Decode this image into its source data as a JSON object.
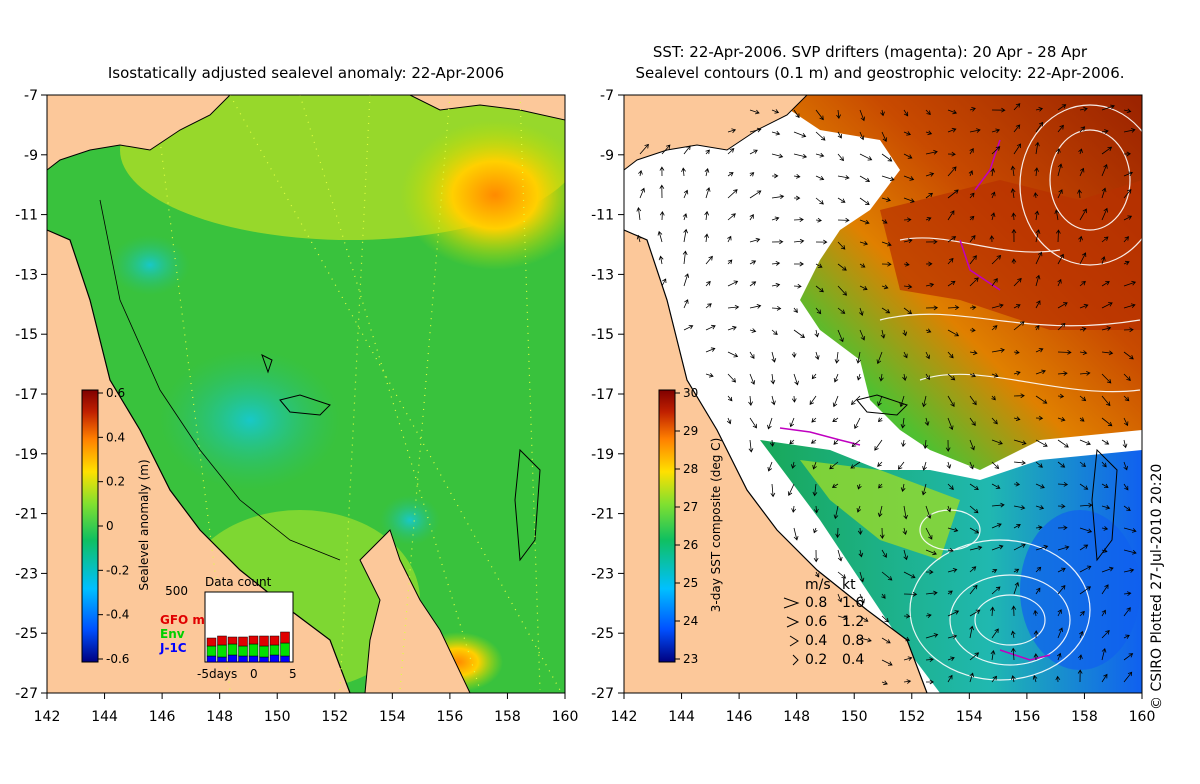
{
  "left_panel": {
    "title": "Isostatically adjusted sealevel anomaly: 22-Apr-2006",
    "colorbar_label": "Sealevel anomaly (m)",
    "colorbar_ticks": [
      "0.6",
      "0.4",
      "0.2",
      "0",
      "-0.2",
      "-0.4",
      "-0.6"
    ],
    "data_count": {
      "title": "Data count",
      "y_max_label": "500",
      "series": [
        {
          "name": "GFO mm",
          "color": "#e00000"
        },
        {
          "name": "Env",
          "color": "#00e000"
        },
        {
          "name": "J-1C",
          "color": "#0000ff"
        }
      ],
      "x_labels": [
        "-5days",
        "0",
        "5"
      ]
    }
  },
  "right_panel": {
    "title_line1": "SST: 22-Apr-2006. SVP drifters (magenta): 20 Apr - 28 Apr",
    "title_line2": "Sealevel contours (0.1 m) and geostrophic velocity: 22-Apr-2006.",
    "colorbar_label": "3-day SST composite (deg C)",
    "colorbar_ticks": [
      "30",
      "29",
      "28",
      "27",
      "26",
      "25",
      "24",
      "23"
    ],
    "speed_legend": {
      "header_ms": "m/s",
      "header_kt": "kt",
      "rows": [
        {
          "ms": "0.8",
          "kt": "1.6"
        },
        {
          "ms": "0.6",
          "kt": "1.2"
        },
        {
          "ms": "0.4",
          "kt": "0.8"
        },
        {
          "ms": "0.2",
          "kt": "0.4"
        }
      ]
    }
  },
  "axes": {
    "y_ticks": [
      "-7",
      "-9",
      "-11",
      "-13",
      "-15",
      "-17",
      "-19",
      "-21",
      "-23",
      "-25",
      "-27"
    ],
    "x_ticks": [
      "142",
      "144",
      "146",
      "148",
      "150",
      "152",
      "154",
      "156",
      "158",
      "160"
    ]
  },
  "credit": "© CSIRO Plotted 27-Jul-2010 20:20",
  "colors": {
    "land": "#fcc89a",
    "ocean_left": "#39c23d",
    "ssh_gradient": [
      "#000080",
      "#0050ff",
      "#00c0ff",
      "#10c060",
      "#80e030",
      "#ffe000",
      "#ff8000",
      "#c02000",
      "#800000"
    ],
    "sst_gradient": [
      "#000080",
      "#0050ff",
      "#00c0ff",
      "#10c060",
      "#80e030",
      "#ffe000",
      "#ff8000",
      "#c02000",
      "#800000"
    ]
  }
}
